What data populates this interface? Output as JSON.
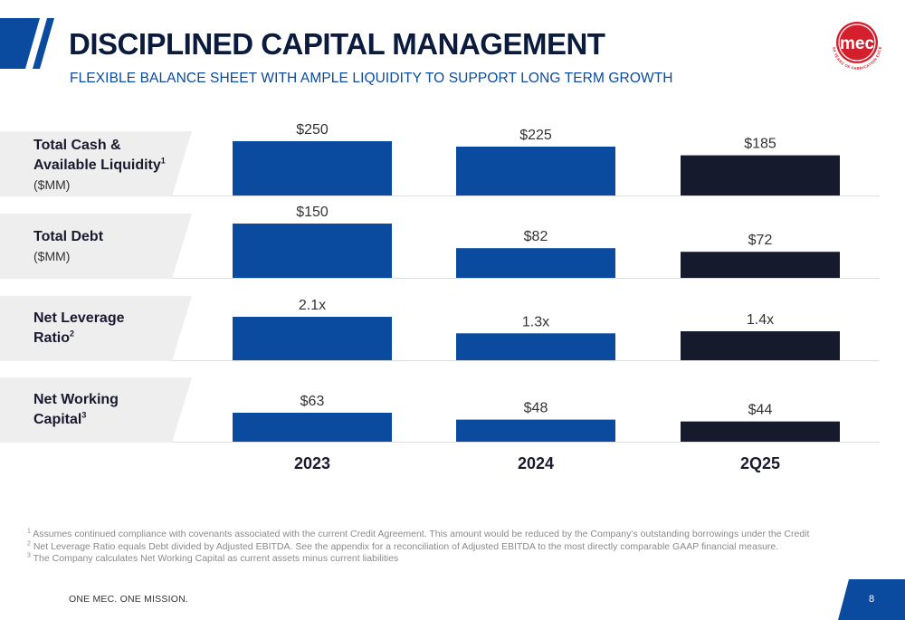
{
  "header": {
    "title": "DISCIPLINED CAPITAL MANAGEMENT",
    "subtitle": "FLEXIBLE BALANCE SHEET WITH AMPLE LIQUIDITY TO SUPPORT LONG TERM GROWTH",
    "logo_text": "mec",
    "logo_ring_text": "60 YEARS OF FABRICATION EXCELLENCE"
  },
  "row_labels": [
    {
      "line1": "Total Cash &",
      "line2": "Available Liquidity",
      "sup": "1",
      "unit": "($MM)"
    },
    {
      "line1": "Total Debt",
      "line2": "",
      "sup": "",
      "unit": "($MM)"
    },
    {
      "line1": "Net Leverage",
      "line2": "Ratio",
      "sup": "2",
      "unit": ""
    },
    {
      "line1": "Net Working",
      "line2": "Capital",
      "sup": "3",
      "unit": ""
    }
  ],
  "chart_data": {
    "type": "bar",
    "categories": [
      "2023",
      "2024",
      "2Q25"
    ],
    "colors": {
      "historical": "#0a4a9f",
      "current": "#151a2c"
    },
    "panels": [
      {
        "metric": "Total Cash & Available Liquidity",
        "values": [
          250,
          225,
          185
        ],
        "labels": [
          "$250",
          "$225",
          "$185"
        ]
      },
      {
        "metric": "Total Debt",
        "values": [
          150,
          82,
          72
        ],
        "labels": [
          "$150",
          "$82",
          "$72"
        ]
      },
      {
        "metric": "Net Leverage Ratio",
        "values": [
          2.1,
          1.3,
          1.4
        ],
        "labels": [
          "2.1x",
          "1.3x",
          "1.4x"
        ]
      },
      {
        "metric": "Net Working Capital",
        "values": [
          63,
          48,
          44
        ],
        "labels": [
          "$63",
          "$48",
          "$44"
        ]
      }
    ]
  },
  "footnotes": [
    {
      "num": "1",
      "text": "Assumes continued compliance with covenants associated with the current Credit Agreement. This amount would be reduced by the Company’s outstanding borrowings under the Credit"
    },
    {
      "num": "2",
      "text": "Net Leverage Ratio equals Debt divided by Adjusted EBITDA. See the appendix for a reconciliation of Adjusted EBITDA to the most directly comparable GAAP financial measure."
    },
    {
      "num": "3",
      "text": "The Company calculates Net Working Capital as current assets minus current liabilities"
    }
  ],
  "footer": {
    "tagline": "ONE MEC. ONE MISSION.",
    "page_number": "8"
  },
  "colors": {
    "brand_navy": "#0b1b3d",
    "brand_blue": "#0a4a9f",
    "logo_red": "#d3202c",
    "label_bg": "#eeeeee"
  }
}
